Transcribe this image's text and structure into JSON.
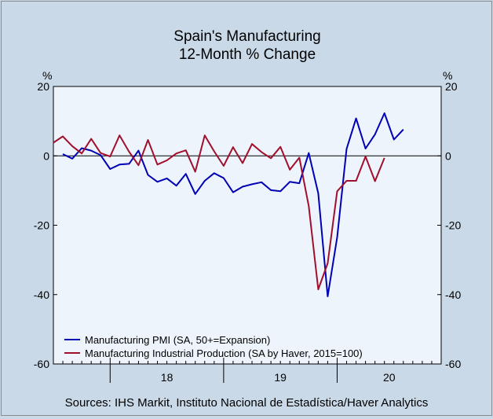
{
  "chart_data": {
    "type": "line",
    "title": [
      "Spain's Manufacturing",
      "12-Month % Change"
    ],
    "ylabel_left": "%",
    "ylabel_right": "%",
    "ylim": [
      -60,
      20
    ],
    "yticks": [
      20,
      0,
      -20,
      -40,
      -60
    ],
    "ytick_labels": [
      "20",
      "0",
      "-20",
      "-40",
      "-60"
    ],
    "x_year_labels": [
      "18",
      "19",
      "20"
    ],
    "x_start": "2017-07",
    "x_end": "2020-12",
    "months": [
      "2017-08",
      "2017-09",
      "2017-10",
      "2017-11",
      "2017-12",
      "2018-01",
      "2018-02",
      "2018-03",
      "2018-04",
      "2018-05",
      "2018-06",
      "2018-07",
      "2018-08",
      "2018-09",
      "2018-10",
      "2018-11",
      "2018-12",
      "2019-01",
      "2019-02",
      "2019-03",
      "2019-04",
      "2019-05",
      "2019-06",
      "2019-07",
      "2019-08",
      "2019-09",
      "2019-10",
      "2019-11",
      "2019-12",
      "2020-01",
      "2020-02",
      "2020-03",
      "2020-04",
      "2020-05",
      "2020-06",
      "2020-07",
      "2020-08",
      "2020-09",
      "2020-10",
      "2020-11",
      "2020-12"
    ],
    "series": [
      {
        "name": "Manufacturing PMI (SA, 50+=Expansion)",
        "color": "#0000b4",
        "values": [
          0.5,
          -0.8,
          2.2,
          1.5,
          0.2,
          -3.8,
          -2.5,
          -2.3,
          1.5,
          -5.5,
          -7.5,
          -6.5,
          -8.6,
          -5.2,
          -11.0,
          -7.2,
          -5.0,
          -6.4,
          -10.5,
          -8.9,
          -8.2,
          -7.6,
          -9.9,
          -10.2,
          -7.5,
          -7.9,
          0.8,
          -10.8,
          -40.5,
          -23.5,
          2.0,
          10.8,
          2.1,
          6.2,
          12.3,
          4.7,
          7.6
        ],
        "start": "2017-08"
      },
      {
        "name": "Manufacturing Industrial Production (SA by Haver, 2015=100)",
        "color": "#a0102c",
        "values": [
          3.8,
          5.6,
          2.8,
          0.7,
          4.9,
          0.8,
          -0.2,
          5.9,
          1.2,
          -2.7,
          4.6,
          -2.5,
          -1.3,
          0.7,
          1.6,
          -4.6,
          5.9,
          1.3,
          -2.9,
          2.5,
          -2.1,
          3.4,
          1.1,
          -0.7,
          2.6,
          -4.0,
          -0.5,
          -14.5,
          -38.5,
          -31.0,
          -10.2,
          -7.2,
          -7.2,
          -0.2,
          -7.3,
          -0.6
        ],
        "start": "2017-07"
      }
    ],
    "legend_placement": "bottom-left",
    "grid": false
  },
  "sources": "Sources:  IHS Markit, Instituto Nacional de Estadística/Haver Analytics"
}
